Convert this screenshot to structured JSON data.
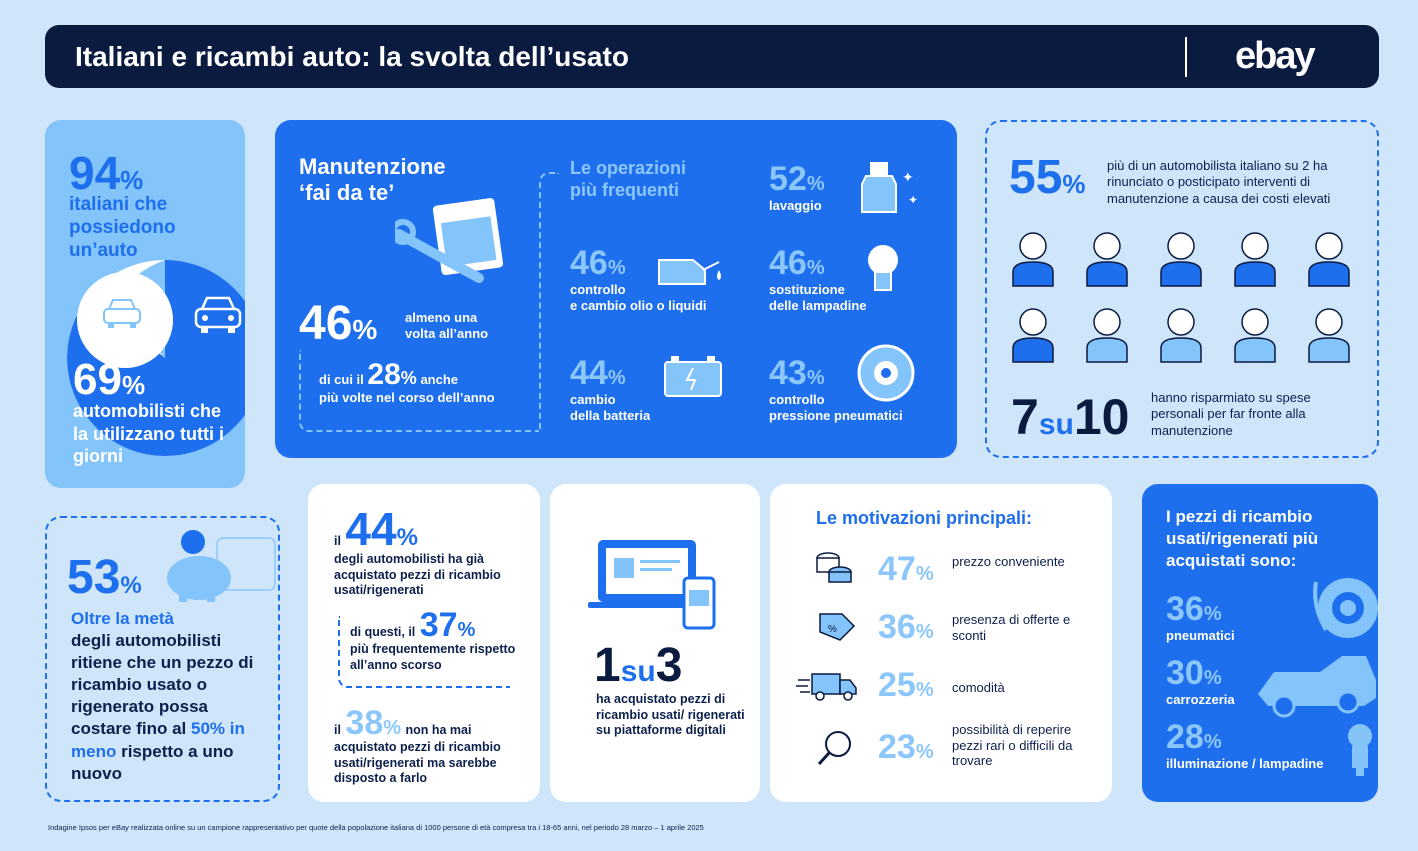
{
  "header": {
    "title": "Italiani e ricambi auto: la svolta dell’usato",
    "logo": "ebay"
  },
  "car_ownership": {
    "pct1_num": "94",
    "pct1_sym": "%",
    "label1": "italiani che possiedono un’auto",
    "pct2_num": "69",
    "pct2_sym": "%",
    "label2": "automobilisti che la utilizzano tutti i giorni"
  },
  "diy": {
    "title_line1": "Manutenzione",
    "title_line2": "‘fai da te’",
    "main_num": "46",
    "main_sym": "%",
    "main_label_line1": "almeno una",
    "main_label_line2": "volta all’anno",
    "sub_prefix": "di cui il",
    "sub_num": "28",
    "sub_sym": "%",
    "sub_suffix": "anche",
    "sub_label": "più volte nel corso dell’anno",
    "ops_title_line1": "Le operazioni",
    "ops_title_line2": "più frequenti",
    "ops": [
      {
        "num": "52",
        "sym": "%",
        "label_line1": "lavaggio",
        "label_line2": ""
      },
      {
        "num": "46",
        "sym": "%",
        "label_line1": "controllo",
        "label_line2": "e cambio olio o liquidi"
      },
      {
        "num": "46",
        "sym": "%",
        "label_line1": "sostituzione",
        "label_line2": "delle lampadine"
      },
      {
        "num": "44",
        "sym": "%",
        "label_line1": "cambio",
        "label_line2": "della batteria"
      },
      {
        "num": "43",
        "sym": "%",
        "label_line1": "controllo",
        "label_line2": "pressione pneumatici"
      }
    ]
  },
  "renounce": {
    "num": "55",
    "sym": "%",
    "label": "più di un automobilista italiano su 2 ha rinunciato o posticipato interventi di manutenzione a causa dei costi elevati",
    "ratio_a": "7",
    "ratio_su": "su",
    "ratio_b": "10",
    "ratio_label": "hanno risparmiato su spese personali per far fronte alla manutenzione"
  },
  "cost_saving": {
    "num": "53",
    "sym": "%",
    "line_blue": "Oltre la metà",
    "line_rest": "degli automobilisti ritiene che un pezzo di ricambio usato o rigenerato possa costare fino al",
    "highlight": "50% in meno",
    "end": "rispetto a uno nuovo"
  },
  "purchased": {
    "p1_prefix": "il",
    "p1_num": "44",
    "p1_sym": "%",
    "p1_label": "degli automobilisti ha già acquistato pezzi di ricambio usati/rigenerati",
    "p2_prefix": "di questi, il",
    "p2_num": "37",
    "p2_sym": "%",
    "p2_label": "più frequentemente rispetto all’anno scorso",
    "p3_prefix": "il",
    "p3_num": "38",
    "p3_sym": "%",
    "p3_suffix": "non ha mai",
    "p3_label": "acquistato pezzi di ricambio usati/rigenerati ma sarebbe disposto a farlo"
  },
  "online": {
    "a": "1",
    "su": "su",
    "b": "3",
    "label": "ha acquistato pezzi di ricambio usati/ rigenerati su piattaforme digitali"
  },
  "motivations": {
    "title": "Le motivazioni principali:",
    "items": [
      {
        "num": "47",
        "sym": "%",
        "label": "prezzo conveniente"
      },
      {
        "num": "36",
        "sym": "%",
        "label": "presenza di offerte e sconti"
      },
      {
        "num": "25",
        "sym": "%",
        "label": "comodità"
      },
      {
        "num": "23",
        "sym": "%",
        "label": "possibilità di reperire pezzi rari o difficili da trovare"
      }
    ]
  },
  "top_parts": {
    "title": "I pezzi di ricambio usati/rigenerati più acquistati sono:",
    "items": [
      {
        "num": "36",
        "sym": "%",
        "label": "pneumatici"
      },
      {
        "num": "30",
        "sym": "%",
        "label": "carrozzeria"
      },
      {
        "num": "28",
        "sym": "%",
        "label": "illuminazione / lampadine"
      }
    ]
  },
  "footnote": "Indagine Ipsos per eBay realizzata online su un campione rappresentativo per quote della popolazione italiana di 1000 persone di età compresa tra i 18-65 anni, nel periodo 28 marzo – 1 aprile 2025"
}
